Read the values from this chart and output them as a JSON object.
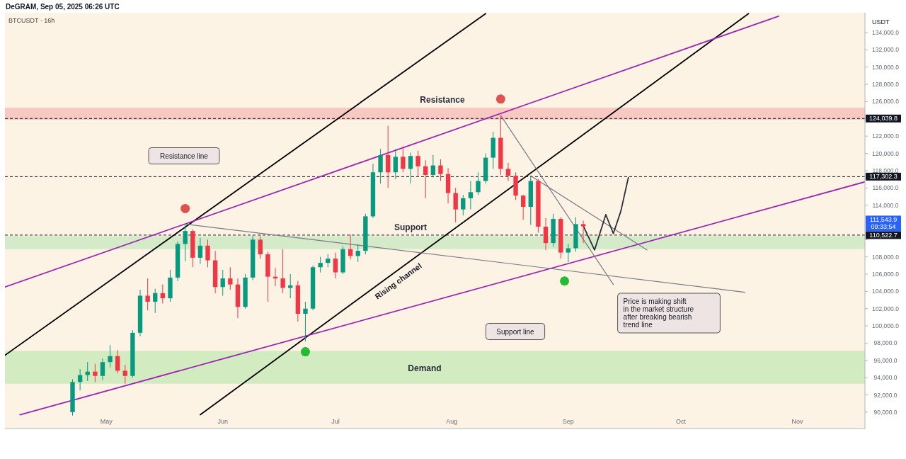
{
  "chart_data": {
    "type": "candlestick",
    "title": "BTCUSDT · 16h",
    "subtitle": "DeGRAM, Sep 05, 2025 06:26 UTC",
    "ylabel": "USDT",
    "x": [
      "2025-04-22",
      "2025-04-24",
      "2025-04-26",
      "2025-04-28",
      "2025-04-30",
      "2025-05-02",
      "2025-05-04",
      "2025-05-06",
      "2025-05-08",
      "2025-05-10",
      "2025-05-12",
      "2025-05-14",
      "2025-05-16",
      "2025-05-18",
      "2025-05-20",
      "2025-05-22",
      "2025-05-24",
      "2025-05-26",
      "2025-05-28",
      "2025-05-30",
      "2025-06-01",
      "2025-06-03",
      "2025-06-05",
      "2025-06-07",
      "2025-06-09",
      "2025-06-11",
      "2025-06-13",
      "2025-06-15",
      "2025-06-17",
      "2025-06-19",
      "2025-06-21",
      "2025-06-23",
      "2025-06-25",
      "2025-06-27",
      "2025-06-29",
      "2025-07-01",
      "2025-07-03",
      "2025-07-05",
      "2025-07-07",
      "2025-07-09",
      "2025-07-11",
      "2025-07-13",
      "2025-07-15",
      "2025-07-17",
      "2025-07-19",
      "2025-07-21",
      "2025-07-23",
      "2025-07-25",
      "2025-07-27",
      "2025-07-29",
      "2025-07-31",
      "2025-08-02",
      "2025-08-04",
      "2025-08-06",
      "2025-08-08",
      "2025-08-10",
      "2025-08-12",
      "2025-08-14",
      "2025-08-16",
      "2025-08-18",
      "2025-08-20",
      "2025-08-22",
      "2025-08-24",
      "2025-08-26",
      "2025-08-28",
      "2025-08-30",
      "2025-09-01",
      "2025-09-03",
      "2025-09-05"
    ],
    "ohlc": [
      [
        90000,
        93800,
        89600,
        93500
      ],
      [
        93500,
        95000,
        92500,
        94300
      ],
      [
        94300,
        95800,
        93600,
        94700
      ],
      [
        94700,
        95600,
        93500,
        94200
      ],
      [
        94200,
        96200,
        93700,
        95800
      ],
      [
        95800,
        97800,
        95200,
        96500
      ],
      [
        96500,
        97200,
        94500,
        94800
      ],
      [
        94800,
        95500,
        93300,
        94200
      ],
      [
        94200,
        99500,
        94000,
        99200
      ],
      [
        99200,
        104200,
        98800,
        103500
      ],
      [
        103500,
        105500,
        101800,
        102800
      ],
      [
        102800,
        104300,
        101500,
        103800
      ],
      [
        103800,
        104800,
        102600,
        103200
      ],
      [
        103200,
        106500,
        102800,
        105600
      ],
      [
        105600,
        109800,
        105200,
        109500
      ],
      [
        109500,
        111800,
        107500,
        111000
      ],
      [
        111000,
        111200,
        106800,
        107900
      ],
      [
        107900,
        110200,
        107200,
        109300
      ],
      [
        109300,
        110000,
        106800,
        107600
      ],
      [
        107600,
        108700,
        103800,
        104500
      ],
      [
        104500,
        106500,
        103500,
        105500
      ],
      [
        105500,
        106800,
        104200,
        104800
      ],
      [
        104800,
        105500,
        100900,
        102200
      ],
      [
        102200,
        106000,
        102000,
        105600
      ],
      [
        105600,
        110500,
        105300,
        110000
      ],
      [
        110000,
        110600,
        107800,
        108300
      ],
      [
        108300,
        108600,
        102800,
        105700
      ],
      [
        105700,
        106700,
        104600,
        105500
      ],
      [
        105500,
        108900,
        103800,
        104400
      ],
      [
        104400,
        106000,
        103200,
        104700
      ],
      [
        104700,
        105200,
        100500,
        101400
      ],
      [
        101400,
        102800,
        98200,
        102000
      ],
      [
        102000,
        107000,
        101800,
        106800
      ],
      [
        106800,
        108000,
        106200,
        107300
      ],
      [
        107300,
        108300,
        106800,
        107800
      ],
      [
        107800,
        108500,
        105500,
        106200
      ],
      [
        106200,
        109200,
        106000,
        108900
      ],
      [
        108900,
        110600,
        107700,
        108100
      ],
      [
        108100,
        109500,
        107400,
        108700
      ],
      [
        108700,
        113000,
        108300,
        112700
      ],
      [
        112700,
        118800,
        112500,
        117800
      ],
      [
        117800,
        120500,
        116500,
        119800
      ],
      [
        119800,
        123200,
        116000,
        117800
      ],
      [
        117800,
        120500,
        117000,
        119600
      ],
      [
        119600,
        120800,
        117800,
        118200
      ],
      [
        118200,
        120100,
        116500,
        119700
      ],
      [
        119700,
        120300,
        117400,
        118500
      ],
      [
        118500,
        119200,
        114800,
        117500
      ],
      [
        117500,
        119800,
        117200,
        118600
      ],
      [
        118600,
        119300,
        116800,
        117600
      ],
      [
        117600,
        118300,
        114200,
        115400
      ],
      [
        115400,
        116000,
        112000,
        113500
      ],
      [
        113500,
        115200,
        112800,
        114800
      ],
      [
        114800,
        116800,
        113500,
        115500
      ],
      [
        115500,
        117800,
        115200,
        116800
      ],
      [
        116800,
        120000,
        116500,
        119500
      ],
      [
        119500,
        122500,
        118200,
        121800
      ],
      [
        121800,
        124300,
        117500,
        118200
      ],
      [
        118200,
        118900,
        116800,
        117400
      ],
      [
        117400,
        117800,
        114600,
        115100
      ],
      [
        115100,
        115200,
        112300,
        113800
      ],
      [
        113800,
        117300,
        111700,
        116800
      ],
      [
        116800,
        117000,
        110800,
        111500
      ],
      [
        111500,
        112500,
        108800,
        109600
      ],
      [
        109600,
        113000,
        109200,
        112400
      ],
      [
        112400,
        112600,
        107800,
        108500
      ],
      [
        108500,
        109500,
        107400,
        109000
      ],
      [
        109000,
        112600,
        108600,
        111800
      ],
      [
        111800,
        112200,
        109600,
        111543.9
      ]
    ],
    "xlim": [
      "2025-04-04",
      "2025-11-19"
    ],
    "xticks": [
      {
        "value": "2025-05-01",
        "label": "May"
      },
      {
        "value": "2025-06-01",
        "label": "Jun"
      },
      {
        "value": "2025-07-01",
        "label": "Jul"
      },
      {
        "value": "2025-08-01",
        "label": "Aug"
      },
      {
        "value": "2025-09-01",
        "label": "Sep"
      },
      {
        "value": "2025-10-01",
        "label": "Oct"
      },
      {
        "value": "2025-11-01",
        "label": "Nov"
      }
    ],
    "ylim": [
      88100,
      136300
    ],
    "yticks": [
      {
        "value": 90000,
        "label": "90,000.0"
      },
      {
        "value": 92000,
        "label": "92,000.0"
      },
      {
        "value": 94000,
        "label": "94,000.0"
      },
      {
        "value": 96000,
        "label": "96,000.0"
      },
      {
        "value": 98000,
        "label": "98,000.0"
      },
      {
        "value": 100000,
        "label": "100,000.0"
      },
      {
        "value": 102000,
        "label": "102,000.0"
      },
      {
        "value": 104000,
        "label": "104,000.0"
      },
      {
        "value": 106000,
        "label": "106,000.0"
      },
      {
        "value": 108000,
        "label": "108,000.0"
      },
      {
        "value": 110000,
        "label": null
      },
      {
        "value": 112000,
        "label": null
      },
      {
        "value": 114000,
        "label": "114,000.0"
      },
      {
        "value": 116000,
        "label": "116,000.0"
      },
      {
        "value": 118000,
        "label": "118,000.0"
      },
      {
        "value": 120000,
        "label": "120,000.0"
      },
      {
        "value": 122000,
        "label": "122,000.0"
      },
      {
        "value": 124000,
        "label": null
      },
      {
        "value": 126000,
        "label": "126,000.0"
      },
      {
        "value": 128000,
        "label": "128,000.0"
      },
      {
        "value": 130000,
        "label": "130,000.0"
      },
      {
        "value": 132000,
        "label": "132,000.0"
      },
      {
        "value": 134000,
        "label": "134,000.0"
      }
    ],
    "series": [
      {
        "type": "line",
        "color": "#000000",
        "x": [
          "2025-04-04",
          "2025-08-10"
        ],
        "values": [
          96600,
          136200
        ]
      },
      {
        "type": "line",
        "color": "#000000",
        "x": [
          "2025-05-26",
          "2025-10-19"
        ],
        "values": [
          89700,
          136200
        ]
      },
      {
        "type": "line",
        "color": "#9c27b0",
        "x": [
          "2025-04-04",
          "2025-10-27"
        ],
        "values": [
          104500,
          135900
        ]
      },
      {
        "type": "line",
        "color": "#9c27b0",
        "x": [
          "2025-04-08",
          "2025-11-19"
        ],
        "values": [
          89700,
          116700
        ]
      },
      {
        "type": "line",
        "color": "#787b86",
        "x": [
          "2025-05-22",
          "2025-10-18"
        ],
        "values": [
          111800,
          103900
        ]
      },
      {
        "type": "line",
        "color": "#787b86",
        "x": [
          "2025-08-14",
          "2025-09-13"
        ],
        "values": [
          124400,
          104800
        ]
      },
      {
        "type": "line",
        "color": "#787b86",
        "x": [
          "2025-08-22",
          "2025-09-22"
        ],
        "values": [
          117400,
          108800
        ]
      },
      {
        "type": "line",
        "color": "#2a2e39",
        "x": [
          "2025-09-05",
          "2025-09-08",
          "2025-09-11",
          "2025-09-13",
          "2025-09-15",
          "2025-09-17"
        ],
        "values": [
          111600,
          108800,
          112900,
          110700,
          113300,
          117200
        ]
      },
      {
        "type": "scatter",
        "marker": "circle",
        "x": [
          "2025-05-22",
          "2025-08-14",
          "2025-06-23",
          "2025-08-31"
        ],
        "values": [
          113600,
          126300,
          97000,
          105200
        ],
        "colors": [
          "#e0514f",
          "#e0514f",
          "#22bb33",
          "#22bb33"
        ]
      }
    ],
    "bands": [
      {
        "axis": "y",
        "from": 123900,
        "to": 125300,
        "label": "Resistance",
        "color": "#f7c1bd"
      },
      {
        "axis": "y",
        "from": 108900,
        "to": 110400,
        "label": "Support",
        "color": "#cde8c3"
      },
      {
        "axis": "y",
        "from": 93300,
        "to": 97100,
        "label": "Demand",
        "color": "#cbe9bb"
      }
    ],
    "ref_lines": [
      {
        "axis": "y",
        "value": 124039.8,
        "label": "124,039.8",
        "line_style": "dashed",
        "color": "#131722"
      },
      {
        "axis": "y",
        "value": 117302.3,
        "label": "117,302.3",
        "line_style": "dashed",
        "color": "#131722"
      },
      {
        "axis": "y",
        "value": 110522.7,
        "label": "110,522.7",
        "line_style": "dashed",
        "color": "#131722"
      }
    ],
    "annotations": [
      "111,543.9",
      "09:33:54",
      "Resistance line",
      "Support line",
      "Rising channel",
      "Price is making shift\nin the market structure\nafter breaking bearish\ntrend line"
    ]
  }
}
